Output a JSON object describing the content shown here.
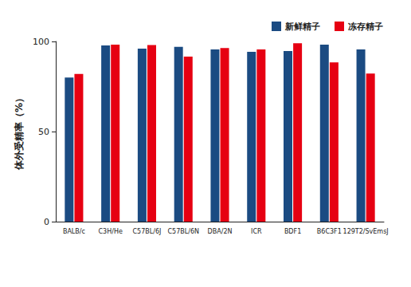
{
  "chart_data": {
    "type": "bar",
    "y_label": "体外受精率（%）",
    "categories": [
      "BALB/c",
      "C3H/He",
      "C57BL/6J",
      "C57BL/6N",
      "DBA/2N",
      "ICR",
      "BDF1",
      "B6C3F1",
      "129T2/SvEmsJ"
    ],
    "series": [
      {
        "name": "新鲜精子",
        "color": "#1b4b82",
        "values": [
          80,
          97.8,
          96,
          97,
          95.6,
          94.2,
          94.7,
          98.2,
          95.6
        ]
      },
      {
        "name": "冻存精子",
        "color": "#e60012",
        "values": [
          82,
          98.2,
          98,
          91.6,
          96.4,
          95.6,
          99,
          88.4,
          82.2
        ]
      }
    ],
    "ylim": [
      0,
      100
    ],
    "yticks": [
      0,
      50,
      100
    ],
    "grid": false,
    "legend": "top-right"
  }
}
